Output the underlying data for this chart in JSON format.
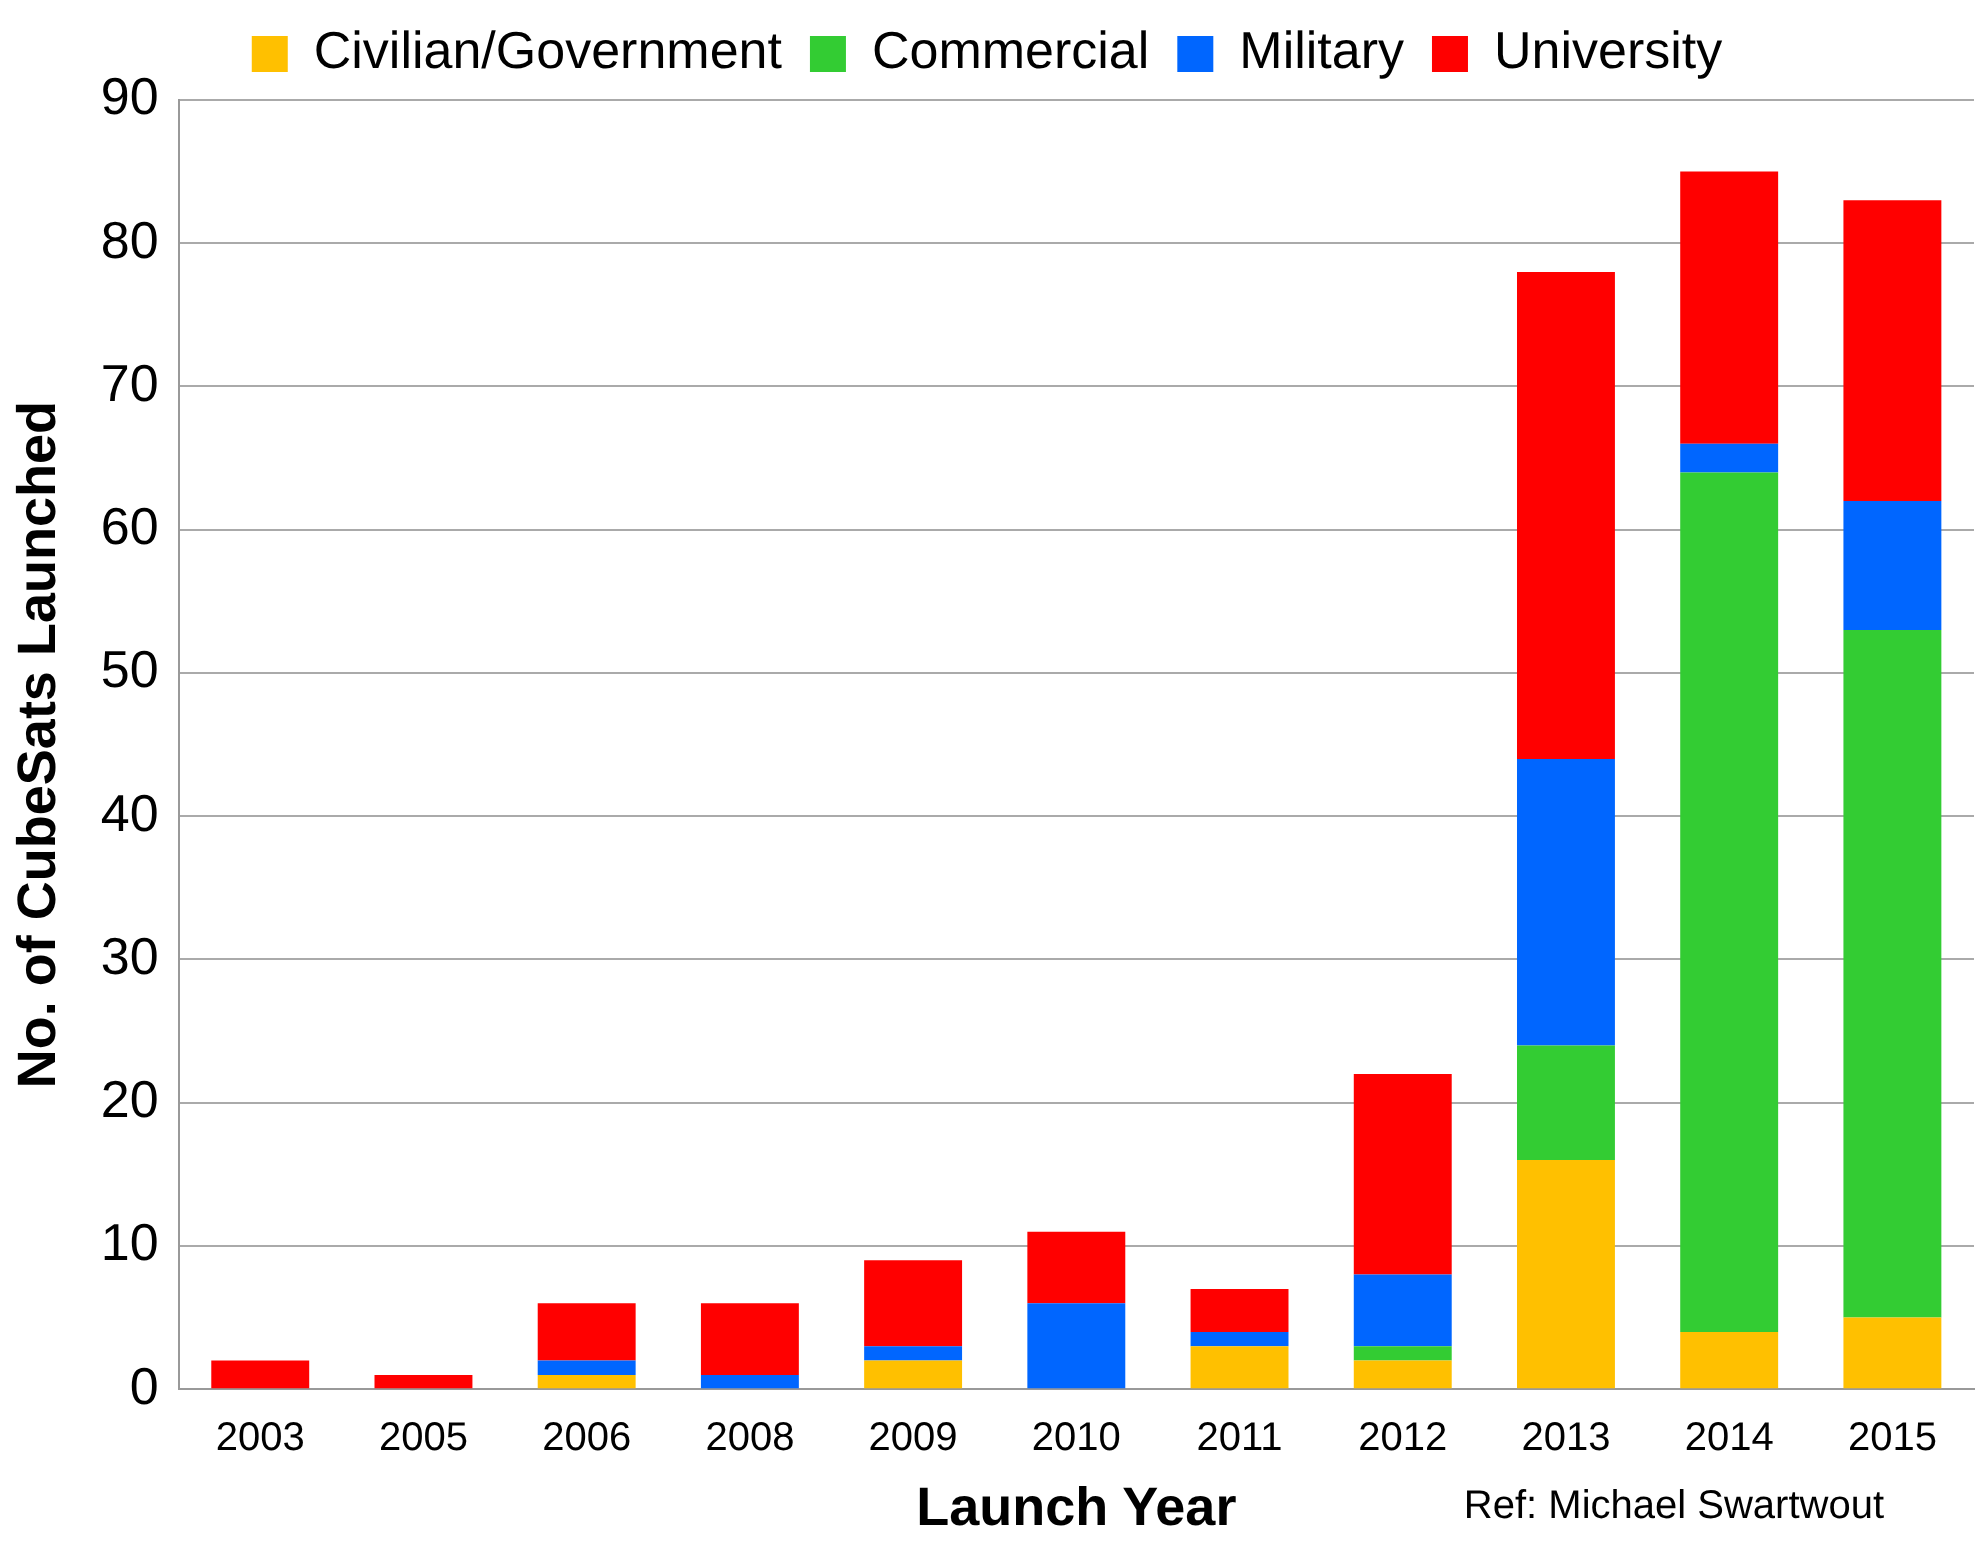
{
  "chart_data": {
    "type": "bar",
    "stacked": true,
    "xlabel": "Launch Year",
    "ylabel": "No. of CubeSats Launched",
    "categories": [
      "2003",
      "2005",
      "2006",
      "2008",
      "2009",
      "2010",
      "2011",
      "2012",
      "2013",
      "2014",
      "2015"
    ],
    "series": [
      {
        "name": "Civilian/Government",
        "color": "#ffc000",
        "values": [
          0,
          0,
          1,
          0,
          2,
          0,
          3,
          2,
          16,
          4,
          5
        ]
      },
      {
        "name": "Commercial",
        "color": "#33cc33",
        "values": [
          0,
          0,
          0,
          0,
          0,
          0,
          0,
          1,
          8,
          60,
          48
        ]
      },
      {
        "name": "Military",
        "color": "#0066ff",
        "values": [
          0,
          0,
          1,
          1,
          1,
          6,
          1,
          5,
          20,
          2,
          9
        ]
      },
      {
        "name": "University",
        "color": "#ff0000",
        "values": [
          2,
          1,
          4,
          5,
          6,
          5,
          3,
          14,
          34,
          19,
          21
        ]
      }
    ],
    "ylim": [
      0,
      90
    ],
    "yticks": [
      0,
      10,
      20,
      30,
      40,
      50,
      60,
      70,
      80,
      90
    ],
    "grid": "y",
    "legend": "top",
    "annotations": [
      "Ref: Michael Swartwout"
    ]
  }
}
